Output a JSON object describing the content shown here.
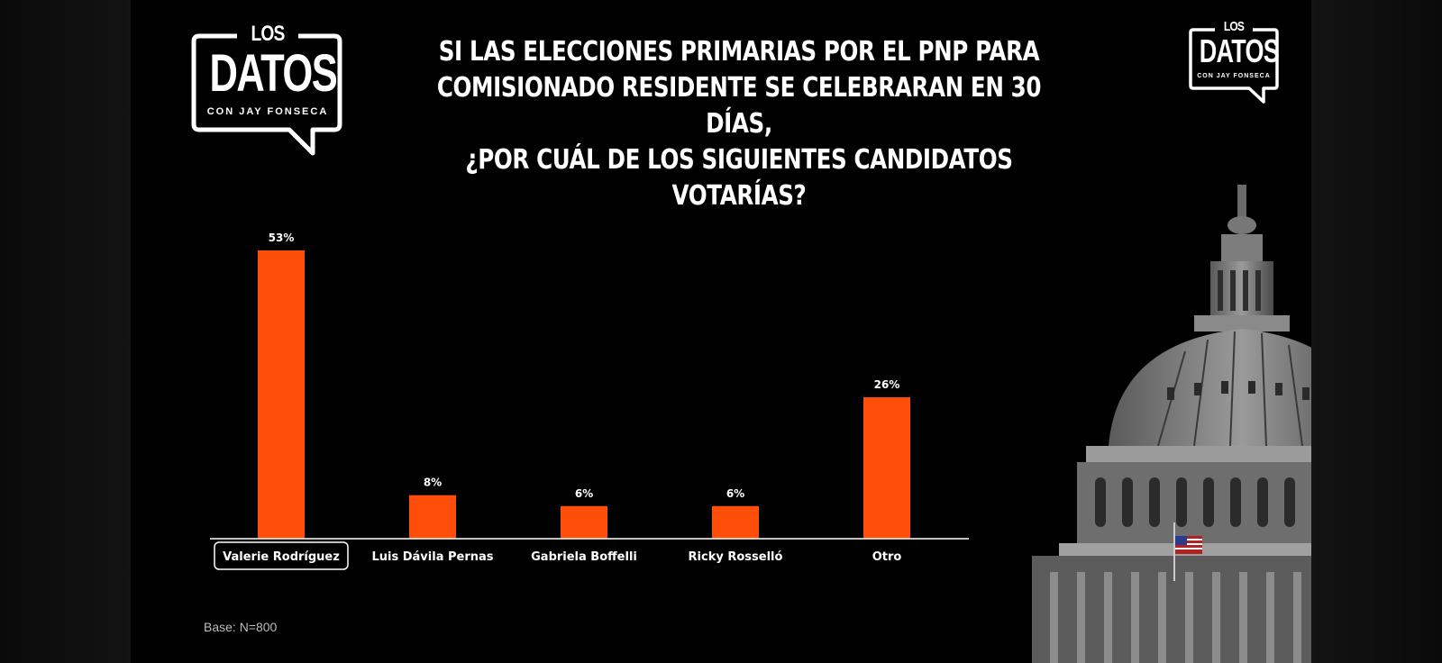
{
  "logo_big": {
    "top": "LOS",
    "main": "DATOS",
    "sub": "CON JAY FONSECA"
  },
  "logo_small": {
    "top": "LOS",
    "main": "DATOS",
    "sub": "CON JAY FONSECA"
  },
  "title": "SI LAS ELECCIONES PRIMARIAS POR EL PNP PARA\nCOMISIONADO RESIDENTE SE CELEBRARAN EN 30 DÍAS,\n¿POR CUÁL DE LOS SIGUIENTES CANDIDATOS VOTARÍAS?",
  "base_note": "Base: N=800",
  "colors": {
    "bar": "#ff4d0a",
    "text": "#ffffff",
    "background": "#000000"
  },
  "chart_data": {
    "type": "bar",
    "title": "SI LAS ELECCIONES PRIMARIAS POR EL PNP PARA COMISIONADO RESIDENTE SE CELEBRARAN EN 30 DÍAS, ¿POR CUÁL DE LOS SIGUIENTES CANDIDATOS VOTARÍAS?",
    "categories": [
      "Valerie Rodríguez",
      "Luis Dávila Pernas",
      "Gabriela Boffelli",
      "Ricky Rosselló",
      "Otro"
    ],
    "values": [
      53,
      8,
      6,
      6,
      26
    ],
    "data_labels": [
      "53%",
      "8%",
      "6%",
      "6%",
      "26%"
    ],
    "highlighted_category": "Valerie Rodríguez",
    "xlabel": "",
    "ylabel": "",
    "ylim": [
      0,
      53
    ],
    "grid": false,
    "unit": "%"
  }
}
